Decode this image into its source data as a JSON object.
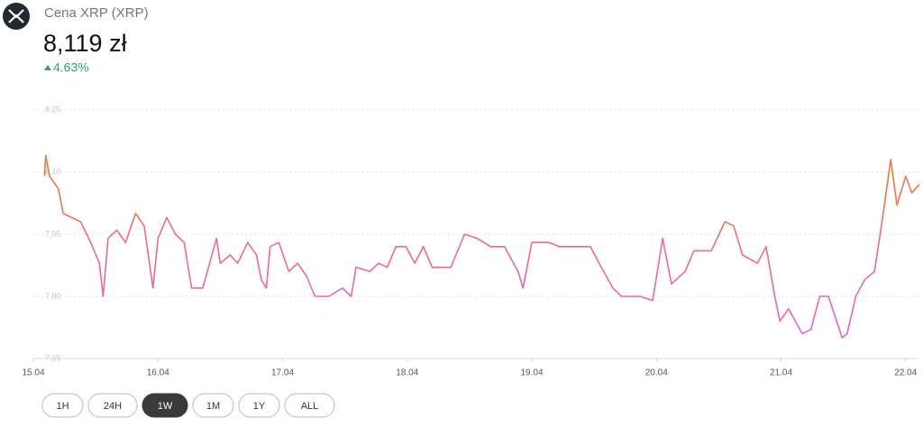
{
  "header": {
    "title": "Cena XRP (XRP)",
    "price": "8,119 zł",
    "change": "4.63%"
  },
  "ranges": {
    "options": [
      "1H",
      "24H",
      "1W",
      "1M",
      "1Y",
      "ALL"
    ],
    "active": 2
  },
  "chart_data": {
    "type": "line",
    "x": [
      0.09,
      0.1,
      0.13,
      0.2,
      0.24,
      0.31,
      0.38,
      0.46,
      0.53,
      0.56,
      0.6,
      0.67,
      0.74,
      0.82,
      0.89,
      0.96,
      1.0,
      1.07,
      1.14,
      1.21,
      1.27,
      1.36,
      1.47,
      1.5,
      1.58,
      1.64,
      1.72,
      1.79,
      1.83,
      1.87,
      1.9,
      1.97,
      2.05,
      2.12,
      2.19,
      2.26,
      2.37,
      2.48,
      2.55,
      2.59,
      2.7,
      2.77,
      2.84,
      2.91,
      2.99,
      3.06,
      3.13,
      3.2,
      3.35,
      3.46,
      3.56,
      3.67,
      3.78,
      3.89,
      3.93,
      4.0,
      4.14,
      4.22,
      4.36,
      4.47,
      4.54,
      4.65,
      4.72,
      4.87,
      4.97,
      5.05,
      5.12,
      5.23,
      5.3,
      5.44,
      5.55,
      5.62,
      5.69,
      5.81,
      5.88,
      5.95,
      5.99,
      6.06,
      6.17,
      6.24,
      6.31,
      6.38,
      6.49,
      6.53,
      6.6,
      6.67,
      6.75,
      6.82,
      6.88,
      6.93,
      7.0,
      7.05,
      7.11
    ],
    "series": [
      {
        "values": [
          8.09,
          8.14,
          8.09,
          8.06,
          8.0,
          7.99,
          7.98,
          7.93,
          7.88,
          7.8,
          7.94,
          7.96,
          7.93,
          8.0,
          7.97,
          7.82,
          7.94,
          7.99,
          7.95,
          7.93,
          7.82,
          7.82,
          7.94,
          7.88,
          7.9,
          7.88,
          7.93,
          7.9,
          7.84,
          7.82,
          7.92,
          7.93,
          7.86,
          7.88,
          7.85,
          7.8,
          7.8,
          7.82,
          7.8,
          7.87,
          7.86,
          7.88,
          7.87,
          7.92,
          7.92,
          7.88,
          7.92,
          7.87,
          7.87,
          7.95,
          7.94,
          7.92,
          7.92,
          7.86,
          7.82,
          7.93,
          7.93,
          7.92,
          7.92,
          7.92,
          7.88,
          7.82,
          7.8,
          7.8,
          7.79,
          7.94,
          7.83,
          7.86,
          7.91,
          7.91,
          7.98,
          7.97,
          7.9,
          7.88,
          7.92,
          7.8,
          7.74,
          7.77,
          7.71,
          7.72,
          7.8,
          7.8,
          7.7,
          7.71,
          7.8,
          7.84,
          7.86,
          8.0,
          8.13,
          8.02,
          8.09,
          8.05,
          8.07
        ]
      }
    ],
    "gradient": {
      "top": "#f07a2c",
      "bottom": "#e65fd8"
    },
    "xlim": [
      0,
      7.11
    ],
    "xticks": [
      {
        "value": 0,
        "label": "15.04"
      },
      {
        "value": 1,
        "label": "16.04"
      },
      {
        "value": 2,
        "label": "17.04"
      },
      {
        "value": 3,
        "label": "18.04"
      },
      {
        "value": 4,
        "label": "19.04"
      },
      {
        "value": 5,
        "label": "20.04"
      },
      {
        "value": 6,
        "label": "21.04"
      },
      {
        "value": 7,
        "label": "22.04"
      }
    ],
    "ylim": [
      7.65,
      8.25
    ],
    "yticks": [
      {
        "value": 7.65,
        "label": "7,65"
      },
      {
        "value": 7.8,
        "label": "7,80"
      },
      {
        "value": 7.95,
        "label": "7,95"
      },
      {
        "value": 8.1,
        "label": "8,10"
      },
      {
        "value": 8.25,
        "label": "8,25"
      }
    ],
    "grid": true
  }
}
